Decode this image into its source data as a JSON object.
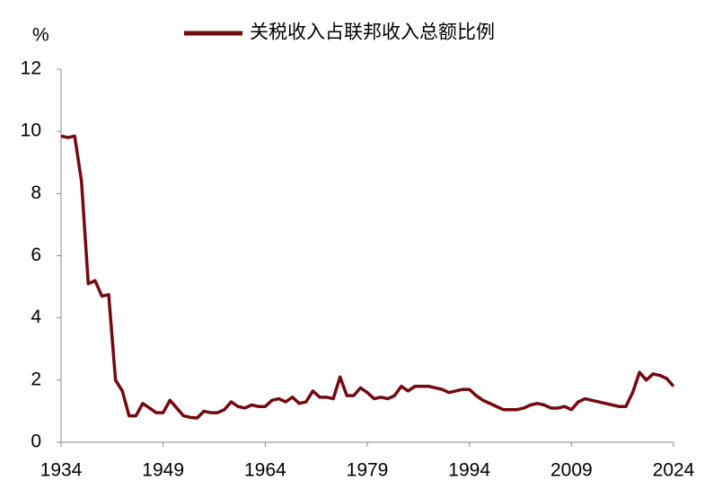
{
  "chart_data": {
    "type": "line",
    "y_unit": "%",
    "x": [
      1934,
      1935,
      1936,
      1937,
      1938,
      1939,
      1940,
      1941,
      1942,
      1943,
      1944,
      1945,
      1946,
      1947,
      1948,
      1949,
      1950,
      1951,
      1952,
      1953,
      1954,
      1955,
      1956,
      1957,
      1958,
      1959,
      1960,
      1961,
      1962,
      1963,
      1964,
      1965,
      1966,
      1967,
      1968,
      1969,
      1970,
      1971,
      1972,
      1973,
      1974,
      1975,
      1976,
      1977,
      1978,
      1979,
      1980,
      1981,
      1982,
      1983,
      1984,
      1985,
      1986,
      1987,
      1988,
      1989,
      1990,
      1991,
      1992,
      1993,
      1994,
      1995,
      1996,
      1997,
      1998,
      1999,
      2000,
      2001,
      2002,
      2003,
      2004,
      2005,
      2006,
      2007,
      2008,
      2009,
      2010,
      2011,
      2012,
      2013,
      2014,
      2015,
      2016,
      2017,
      2018,
      2019,
      2020,
      2021,
      2022,
      2023,
      2024
    ],
    "series": [
      {
        "name": "关税收入占联邦收入总额比例",
        "color": "#74090f",
        "values": [
          9.85,
          9.8,
          9.85,
          8.4,
          5.1,
          5.2,
          4.7,
          4.75,
          2.0,
          1.65,
          0.85,
          0.85,
          1.25,
          1.1,
          0.95,
          0.95,
          1.35,
          1.1,
          0.85,
          0.8,
          0.78,
          1.0,
          0.95,
          0.95,
          1.05,
          1.3,
          1.15,
          1.1,
          1.2,
          1.15,
          1.15,
          1.35,
          1.4,
          1.3,
          1.45,
          1.25,
          1.3,
          1.65,
          1.45,
          1.45,
          1.4,
          2.1,
          1.5,
          1.5,
          1.75,
          1.6,
          1.4,
          1.45,
          1.4,
          1.5,
          1.8,
          1.65,
          1.8,
          1.8,
          1.8,
          1.75,
          1.7,
          1.6,
          1.65,
          1.7,
          1.7,
          1.5,
          1.35,
          1.25,
          1.15,
          1.05,
          1.05,
          1.05,
          1.1,
          1.2,
          1.25,
          1.2,
          1.1,
          1.1,
          1.15,
          1.05,
          1.3,
          1.4,
          1.35,
          1.3,
          1.25,
          1.2,
          1.15,
          1.15,
          1.6,
          2.25,
          2.0,
          2.2,
          2.15,
          2.05,
          1.8
        ]
      }
    ],
    "xlim": [
      1934,
      2024
    ],
    "xticks": [
      1934,
      1949,
      1964,
      1979,
      1994,
      2009,
      2024
    ],
    "ylim": [
      0,
      12
    ],
    "yticks": [
      0,
      2,
      4,
      6,
      8,
      10,
      12
    ],
    "grid": false
  }
}
